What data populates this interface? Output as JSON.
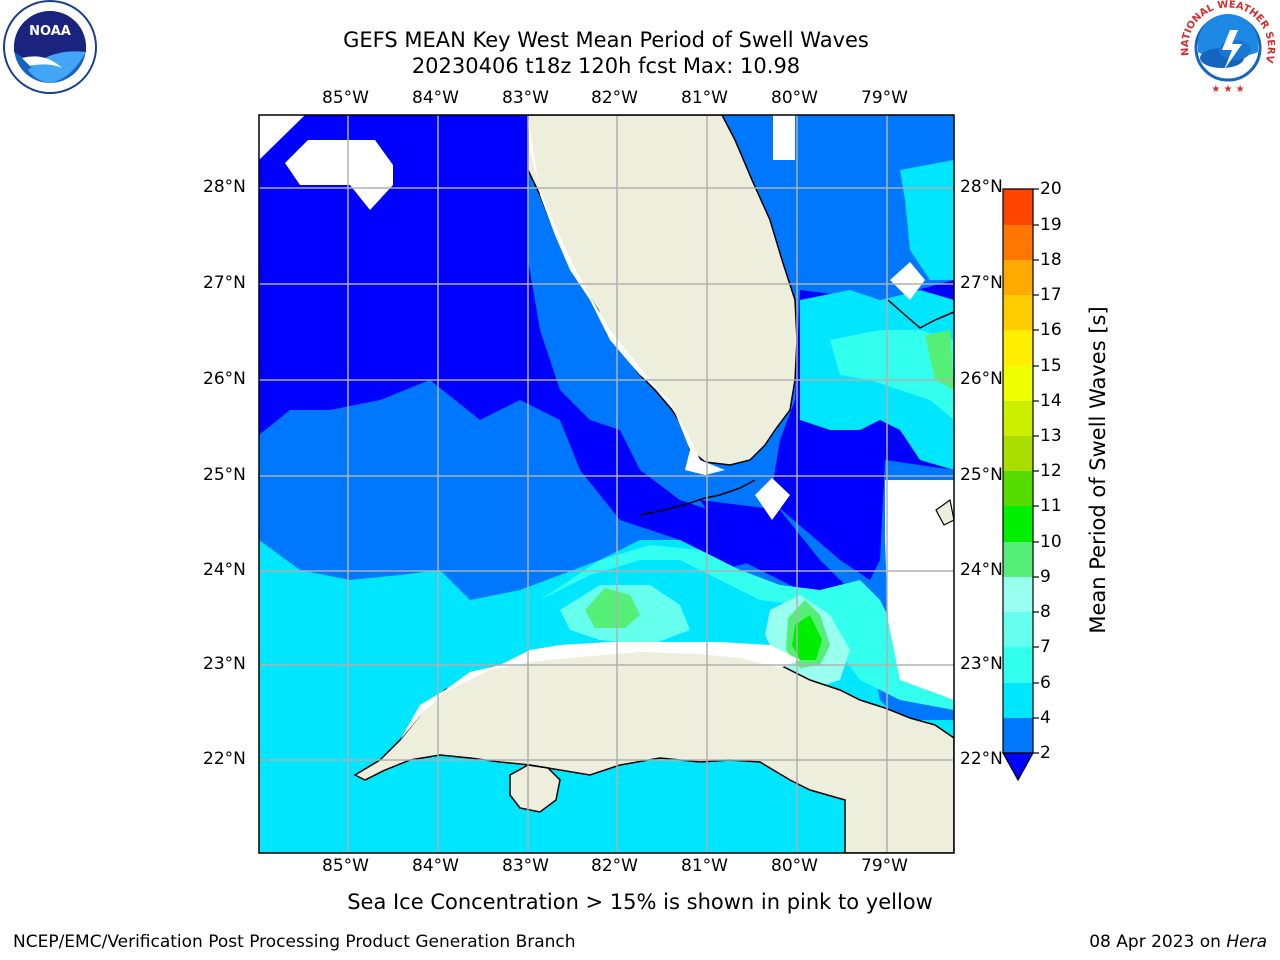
{
  "title": {
    "line1": "GEFS MEAN Key West Mean Period of Swell Waves",
    "line2": "20230406 t18z 120h fcst   Max: 10.98"
  },
  "axes": {
    "lon_labels": [
      "85°W",
      "84°W",
      "83°W",
      "82°W",
      "81°W",
      "80°W",
      "79°W"
    ],
    "lat_labels": [
      "28°N",
      "27°N",
      "26°N",
      "25°N",
      "24°N",
      "23°N",
      "22°N"
    ]
  },
  "colorbar": {
    "title": "Mean Period of Swell Waves [s]",
    "levels": [
      "2",
      "4",
      "6",
      "7",
      "8",
      "9",
      "10",
      "11",
      "12",
      "13",
      "14",
      "15",
      "16",
      "17",
      "18",
      "19",
      "20",
      "21"
    ],
    "colors": [
      "#0000ff",
      "#0077ff",
      "#00e6ff",
      "#33ffee",
      "#66ffee",
      "#99ffee",
      "#55ee77",
      "#00ee00",
      "#55dd00",
      "#aadd00",
      "#ccee00",
      "#eeff00",
      "#ffee00",
      "#ffcc00",
      "#ffaa00",
      "#ff7700",
      "#ff4400",
      "#ff0000"
    ]
  },
  "caption": "Sea Ice Concentration > 15% is shown in pink to yellow",
  "footer": {
    "left": "NCEP/EMC/Verification Post Processing Product Generation Branch",
    "date": "08 Apr 2023 on ",
    "machine": "Hera"
  },
  "logos": {
    "noaa": "NOAA",
    "nws_arc": "NATIONAL WEATHER SERVICE"
  }
}
